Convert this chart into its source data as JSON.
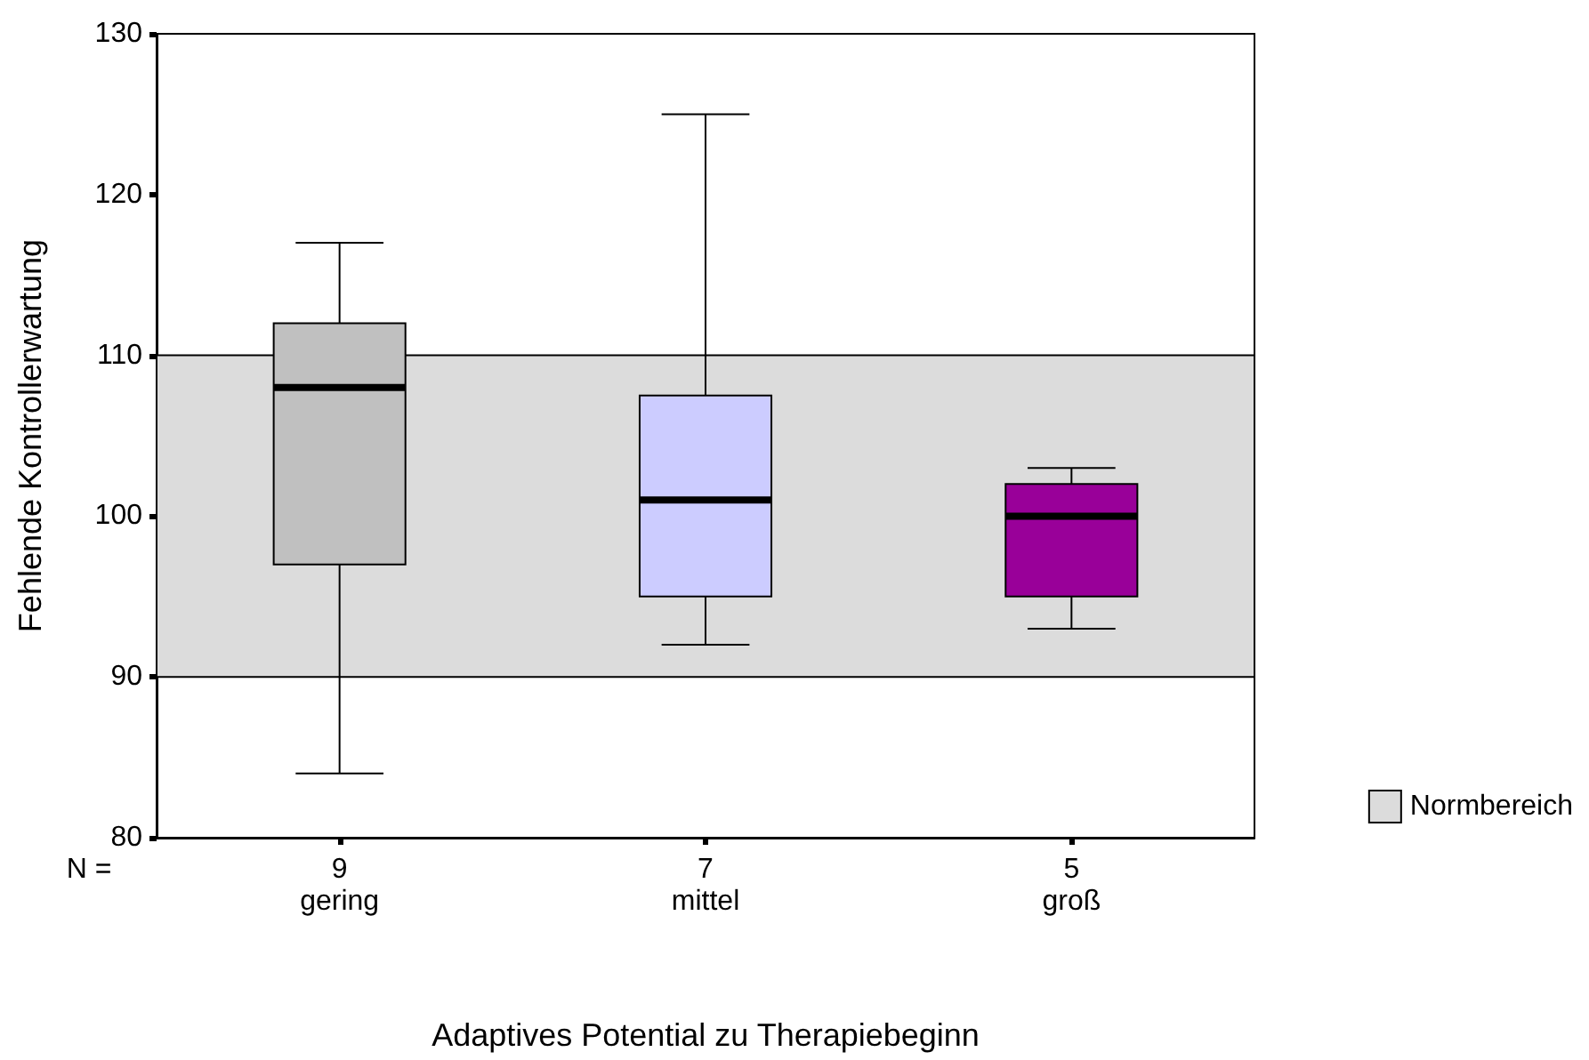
{
  "chart_data": {
    "type": "box",
    "xlabel": "Adaptives Potential zu Therapiebeginn",
    "ylabel": "Fehlende Kontrollerwartung",
    "categories": [
      "gering",
      "mittel",
      "groß"
    ],
    "boxes": [
      {
        "low": 84,
        "q1": 97,
        "median": 108,
        "q3": 112,
        "high": 117
      },
      {
        "low": 92,
        "q1": 95,
        "median": 101,
        "q3": 107.5,
        "high": 125
      },
      {
        "low": 93,
        "q1": 95,
        "median": 100,
        "q3": 102,
        "high": 103
      }
    ],
    "colors": [
      "#c0c0c0",
      "#ccccff",
      "#990099"
    ],
    "ylim": [
      80,
      130
    ],
    "yticks": [
      80,
      90,
      100,
      110,
      120,
      130
    ],
    "grid": false,
    "bands": [
      {
        "axis": "y",
        "from": 90,
        "to": 110,
        "label": "Normbereich",
        "color": "#dcdcdc"
      }
    ],
    "legend": "bottom right",
    "annotations": [
      "N =",
      "9",
      "7",
      "5"
    ]
  }
}
